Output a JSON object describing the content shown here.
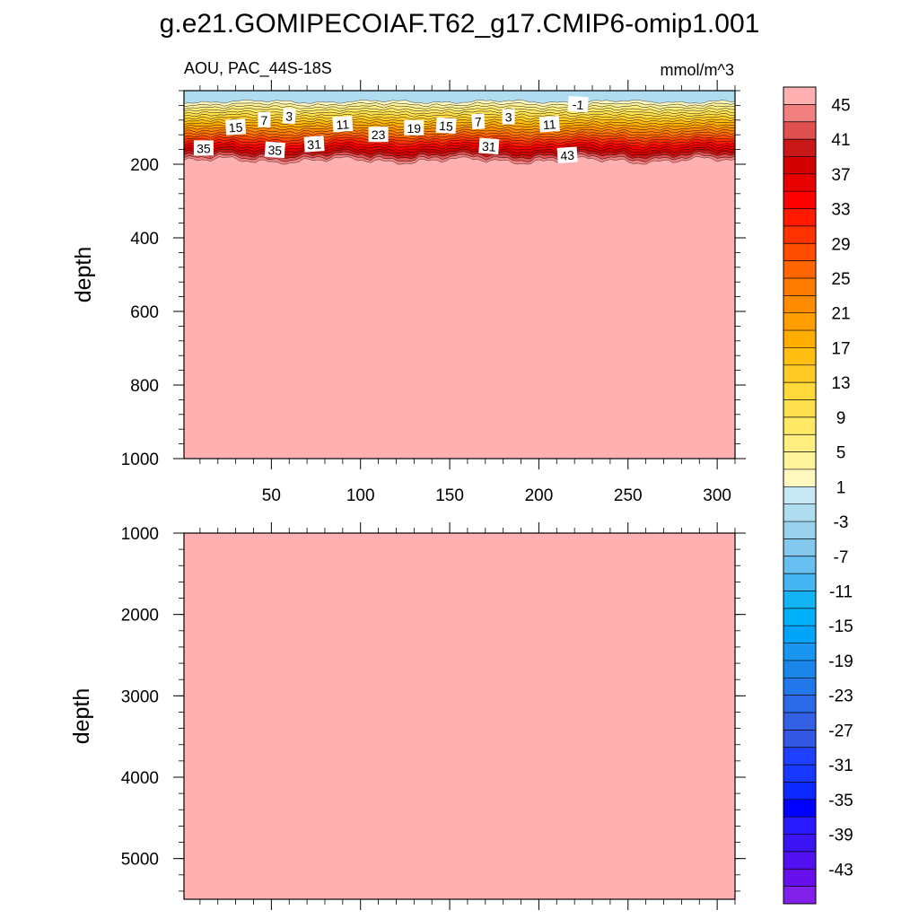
{
  "title": "g.e21.GOMIPECOIAF.T62_g17.CMIP6-omip1.001",
  "chart_data": {
    "type": "heatmap",
    "variable": "AOU",
    "region": "PAC_44S-18S",
    "units": "mmol/m^3",
    "left_label": "AOU, PAC_44S-18S",
    "right_label": "mmol/m^3",
    "xlim": [
      1,
      310
    ],
    "x_ticks": [
      "50",
      "100",
      "150",
      "200",
      "250",
      "300"
    ],
    "x_tick_values": [
      50,
      100,
      150,
      200,
      250,
      300
    ],
    "panels": [
      {
        "ylabel": "depth",
        "ylim": [
          0,
          1000
        ],
        "y_ticks": [
          "200",
          "400",
          "600",
          "800",
          "1000"
        ],
        "y_tick_values": [
          200,
          400,
          600,
          800,
          1000
        ],
        "show_x_labels": true,
        "surface_layer": {
          "top_depth": 0,
          "bottom_depth_range": [
            25,
            35
          ],
          "value": -3
        },
        "gradient_layer": {
          "min_value": 1,
          "max_value": 45,
          "bottom_depth_range": [
            180,
            200
          ]
        },
        "deep_value": 45
      },
      {
        "ylabel": "depth",
        "ylim": [
          1000,
          5500
        ],
        "y_ticks": [
          "1000",
          "2000",
          "3000",
          "4000",
          "5000"
        ],
        "y_tick_values": [
          1000,
          2000,
          3000,
          4000,
          5000
        ],
        "show_x_labels": false,
        "deep_value": 45
      }
    ],
    "contour_labels": [
      {
        "text": "15",
        "x": 30,
        "depth": 100
      },
      {
        "text": "7",
        "x": 46,
        "depth": 80
      },
      {
        "text": "3",
        "x": 60,
        "depth": 70
      },
      {
        "text": "11",
        "x": 90,
        "depth": 92
      },
      {
        "text": "19",
        "x": 130,
        "depth": 102
      },
      {
        "text": "15",
        "x": 148,
        "depth": 96
      },
      {
        "text": "7",
        "x": 166,
        "depth": 85
      },
      {
        "text": "3",
        "x": 183,
        "depth": 72
      },
      {
        "text": "-1",
        "x": 222,
        "depth": 38
      },
      {
        "text": "11",
        "x": 206,
        "depth": 92
      },
      {
        "text": "35",
        "x": 12,
        "depth": 157
      },
      {
        "text": "35",
        "x": 52,
        "depth": 162
      },
      {
        "text": "31",
        "x": 74,
        "depth": 146
      },
      {
        "text": "23",
        "x": 110,
        "depth": 120
      },
      {
        "text": "31",
        "x": 172,
        "depth": 152
      },
      {
        "text": "43",
        "x": 216,
        "depth": 176
      }
    ],
    "colorbar": {
      "labels": [
        "45",
        "41",
        "37",
        "33",
        "29",
        "25",
        "21",
        "17",
        "13",
        "9",
        "5",
        "1",
        "-3",
        "-7",
        "-11",
        "-15",
        "-19",
        "-23",
        "-27",
        "-31",
        "-35",
        "-39",
        "-43"
      ],
      "colors": [
        "#ffb0b0",
        "#f28080",
        "#e05050",
        "#c81818",
        "#d40000",
        "#e60000",
        "#ff0000",
        "#ff1a00",
        "#ff3300",
        "#ff4d00",
        "#ff6600",
        "#ff7a00",
        "#ff8c00",
        "#ff9e00",
        "#ffae00",
        "#ffbe10",
        "#ffcc26",
        "#ffd83a",
        "#ffe14f",
        "#ffe866",
        "#ffef80",
        "#fff49c",
        "#fff9c0",
        "#c6e8f5",
        "#b0dcf0",
        "#9ad2ee",
        "#84c8ed",
        "#68c0f0",
        "#46b6f2",
        "#14b4f4",
        "#00b0f8",
        "#00a4f8",
        "#1896f0",
        "#1a86ea",
        "#2278ea",
        "#2a6ae6",
        "#3460e4",
        "#3458e4",
        "#2040ff",
        "#1838ff",
        "#0a28ff",
        "#0000ff",
        "#2a1aff",
        "#3a14f4",
        "#5010f0",
        "#6810ec",
        "#8020e8"
      ]
    }
  }
}
